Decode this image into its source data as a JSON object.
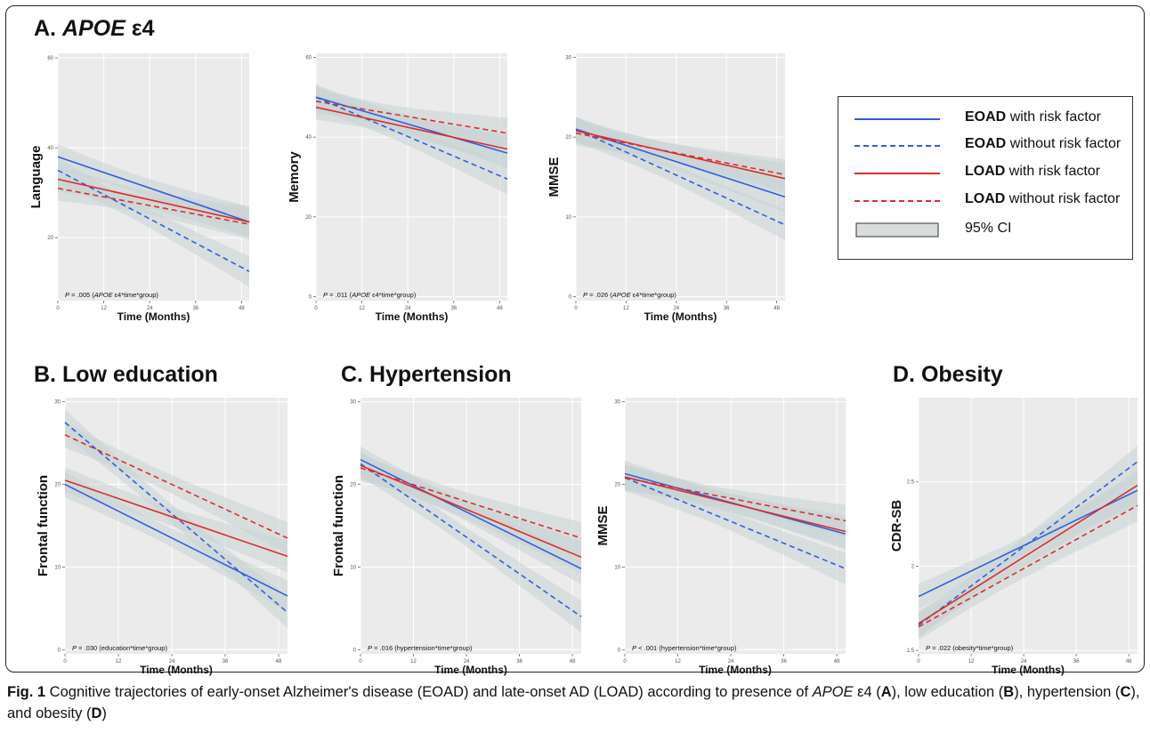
{
  "sections": {
    "a_prefix": "A.",
    "a_italic": "APOE",
    "a_suffix": "ε4",
    "b": "B. Low education",
    "c": "C. Hypertension",
    "d": "D. Obesity"
  },
  "legend": {
    "items": [
      {
        "group": "EOAD",
        "text": "with risk factor",
        "color": "#2e5fe0",
        "dashed": false
      },
      {
        "group": "EOAD",
        "text": "without risk factor",
        "color": "#2e5fe0",
        "dashed": true
      },
      {
        "group": "LOAD",
        "text": "with risk factor",
        "color": "#e02b2b",
        "dashed": false
      },
      {
        "group": "LOAD",
        "text": "without risk factor",
        "color": "#e02b2b",
        "dashed": true
      }
    ],
    "ci_label": "95% CI"
  },
  "caption": {
    "fig": "Fig. 1",
    "text1": " Cognitive trajectories of early-onset Alzheimer's disease (EOAD) and late-onset AD (LOAD) according to presence of ",
    "apoe": "APOE",
    "text2": " ε4 (",
    "a": "A",
    "text3": "), low education (",
    "b": "B",
    "text4": "), hypertension (",
    "c": "C",
    "text5": "), and obesity (",
    "d": "D",
    "text6": ")"
  },
  "colors": {
    "eoad": "#2e5fe0",
    "load": "#e02b2b",
    "panel_bg": "#ebebeb",
    "ci": "#c9d3d3"
  },
  "chart_data": [
    {
      "id": "a-language",
      "type": "line",
      "title": "",
      "xlabel": "Time (Months)",
      "ylabel": "Language",
      "xlim": [
        0,
        50
      ],
      "ylim": [
        6,
        61
      ],
      "xticks": [
        0,
        12,
        24,
        36,
        48
      ],
      "yticks": [
        20,
        40,
        60
      ],
      "series": [
        {
          "name": "EOAD with risk factor",
          "x": [
            0,
            50
          ],
          "y": [
            38,
            23.5
          ]
        },
        {
          "name": "EOAD without risk factor",
          "x": [
            0,
            50
          ],
          "y": [
            35,
            12.5
          ]
        },
        {
          "name": "LOAD with risk factor",
          "x": [
            0,
            50
          ],
          "y": [
            33,
            23.5
          ]
        },
        {
          "name": "LOAD without risk factor",
          "x": [
            0,
            50
          ],
          "y": [
            31,
            23
          ]
        }
      ],
      "annotation": {
        "p": "P",
        "value": " = .005 (",
        "italic": "APOE",
        "rest": " ε4*time*group)"
      }
    },
    {
      "id": "a-memory",
      "type": "line",
      "title": "",
      "xlabel": "Time (Months)",
      "ylabel": "Memory",
      "xlim": [
        0,
        50
      ],
      "ylim": [
        -1,
        61
      ],
      "xticks": [
        0,
        12,
        24,
        36,
        48
      ],
      "yticks": [
        0,
        20,
        40,
        60
      ],
      "series": [
        {
          "name": "EOAD with risk factor",
          "x": [
            0,
            50
          ],
          "y": [
            50,
            36
          ]
        },
        {
          "name": "EOAD without risk factor",
          "x": [
            0,
            50
          ],
          "y": [
            50,
            29.5
          ]
        },
        {
          "name": "LOAD with risk factor",
          "x": [
            0,
            50
          ],
          "y": [
            47.5,
            37
          ]
        },
        {
          "name": "LOAD without risk factor",
          "x": [
            0,
            50
          ],
          "y": [
            49,
            41
          ]
        }
      ],
      "annotation": {
        "p": "P",
        "value": " = .011 (",
        "italic": "APOE",
        "rest": " ε4*time*group)"
      }
    },
    {
      "id": "a-mmse",
      "type": "line",
      "title": "",
      "xlabel": "Time (Months)",
      "ylabel": "MMSE",
      "xlim": [
        0,
        50
      ],
      "ylim": [
        -0.5,
        30.5
      ],
      "xticks": [
        0,
        12,
        24,
        36,
        48
      ],
      "yticks": [
        0,
        10,
        20,
        30
      ],
      "series": [
        {
          "name": "EOAD with risk factor",
          "x": [
            0,
            50
          ],
          "y": [
            21,
            12.5
          ]
        },
        {
          "name": "EOAD without risk factor",
          "x": [
            0,
            50
          ],
          "y": [
            21,
            9
          ]
        },
        {
          "name": "LOAD with risk factor",
          "x": [
            0,
            50
          ],
          "y": [
            20.8,
            14.8
          ]
        },
        {
          "name": "LOAD without risk factor",
          "x": [
            0,
            50
          ],
          "y": [
            20.5,
            15.3
          ]
        }
      ],
      "annotation": {
        "p": "P",
        "value": " = .026 (",
        "italic": "APOE",
        "rest": " ε4*time*group)"
      }
    },
    {
      "id": "b-frontal",
      "type": "line",
      "title": "",
      "xlabel": "Time (Months)",
      "ylabel": "Frontal function",
      "xlim": [
        0,
        50
      ],
      "ylim": [
        -0.5,
        30.5
      ],
      "xticks": [
        0,
        12,
        24,
        36,
        48
      ],
      "yticks": [
        0,
        10,
        20,
        30
      ],
      "series": [
        {
          "name": "EOAD with risk factor",
          "x": [
            0,
            50
          ],
          "y": [
            20,
            6.5
          ]
        },
        {
          "name": "EOAD without risk factor",
          "x": [
            0,
            50
          ],
          "y": [
            27.5,
            4.5
          ]
        },
        {
          "name": "LOAD with risk factor",
          "x": [
            0,
            50
          ],
          "y": [
            20.5,
            11.3
          ]
        },
        {
          "name": "LOAD without risk factor",
          "x": [
            0,
            50
          ],
          "y": [
            26,
            13.5
          ]
        }
      ],
      "annotation": {
        "p": "P",
        "value": " = .030 (education*time*group)",
        "italic": "",
        "rest": ""
      }
    },
    {
      "id": "c-frontal",
      "type": "line",
      "title": "",
      "xlabel": "Time (Months)",
      "ylabel": "Frontal function",
      "xlim": [
        0,
        50
      ],
      "ylim": [
        -0.5,
        30.5
      ],
      "xticks": [
        0,
        12,
        24,
        36,
        48
      ],
      "yticks": [
        0,
        10,
        20,
        30
      ],
      "series": [
        {
          "name": "EOAD with risk factor",
          "x": [
            0,
            50
          ],
          "y": [
            23,
            9.8
          ]
        },
        {
          "name": "EOAD without risk factor",
          "x": [
            0,
            50
          ],
          "y": [
            22.5,
            4
          ]
        },
        {
          "name": "LOAD with risk factor",
          "x": [
            0,
            50
          ],
          "y": [
            22.3,
            11.2
          ]
        },
        {
          "name": "LOAD without risk factor",
          "x": [
            0,
            50
          ],
          "y": [
            22,
            13.5
          ]
        }
      ],
      "annotation": {
        "p": "P",
        "value": " = .016 (hypertension*time*group)",
        "italic": "",
        "rest": ""
      }
    },
    {
      "id": "c-mmse",
      "type": "line",
      "title": "",
      "xlabel": "Time (Months)",
      "ylabel": "MMSE",
      "xlim": [
        0,
        50
      ],
      "ylim": [
        -0.5,
        30.5
      ],
      "xticks": [
        0,
        12,
        24,
        36,
        48
      ],
      "yticks": [
        0,
        10,
        20,
        30
      ],
      "series": [
        {
          "name": "EOAD with risk factor",
          "x": [
            0,
            50
          ],
          "y": [
            21.3,
            14
          ]
        },
        {
          "name": "EOAD without risk factor",
          "x": [
            0,
            50
          ],
          "y": [
            20.8,
            9.8
          ]
        },
        {
          "name": "LOAD with risk factor",
          "x": [
            0,
            50
          ],
          "y": [
            20.9,
            14.3
          ]
        },
        {
          "name": "LOAD without risk factor",
          "x": [
            0,
            50
          ],
          "y": [
            20.8,
            15.6
          ]
        }
      ],
      "annotation": {
        "p": "P",
        "value": " < .001 (hypertension*time*group)",
        "italic": "",
        "rest": ""
      }
    },
    {
      "id": "d-cdrsb",
      "type": "line",
      "title": "",
      "xlabel": "Time (Months)",
      "ylabel": "CDR-SB",
      "xlim": [
        0,
        50
      ],
      "ylim": [
        1.48,
        3.0
      ],
      "xticks": [
        0,
        12,
        24,
        36,
        48
      ],
      "yticks": [
        1.5,
        2.0,
        2.5
      ],
      "series": [
        {
          "name": "EOAD with risk factor",
          "x": [
            0,
            50
          ],
          "y": [
            1.82,
            2.45
          ]
        },
        {
          "name": "EOAD without risk factor",
          "x": [
            0,
            50
          ],
          "y": [
            1.65,
            2.62
          ]
        },
        {
          "name": "LOAD with risk factor",
          "x": [
            0,
            50
          ],
          "y": [
            1.66,
            2.48
          ]
        },
        {
          "name": "LOAD without risk factor",
          "x": [
            0,
            50
          ],
          "y": [
            1.64,
            2.36
          ]
        }
      ],
      "annotation": {
        "p": "P",
        "value": " = .022 (obesity*time*group)",
        "italic": "",
        "rest": ""
      }
    }
  ]
}
